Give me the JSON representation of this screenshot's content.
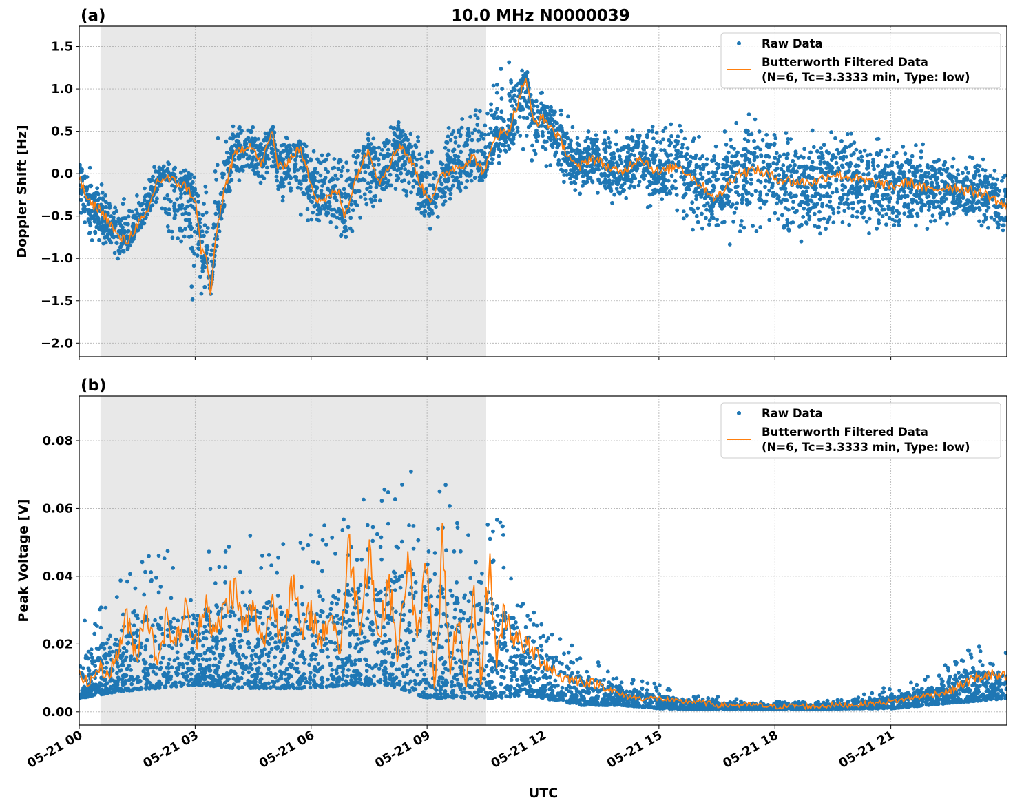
{
  "chart_data": [
    {
      "type": "scatter+line",
      "panel_label": "(a)",
      "title": "10.0 MHz N0000039",
      "xlabel": "",
      "ylabel": "Doppler Shift [Hz]",
      "xlim_hours_utc": [
        0,
        24
      ],
      "ylim": [
        -2.16,
        1.74
      ],
      "yticks": [
        -2.0,
        -1.5,
        -1.0,
        -0.5,
        0.0,
        0.5,
        1.0,
        1.5
      ],
      "ytick_labels": [
        "−2.0",
        "−1.5",
        "−1.0",
        "−0.5",
        "0.0",
        "0.5",
        "1.0",
        "1.5"
      ],
      "grid": true,
      "shaded_span_hours": [
        0.55,
        10.53
      ],
      "shade_color": "#e8e8e8",
      "legend": {
        "placement": "top-right",
        "entries": [
          "Raw Data",
          "Butterworth Filtered Data",
          "(N=6, Tc=3.3333 min, Type: low)"
        ]
      },
      "series": [
        {
          "name": "Butterworth Filtered Data",
          "color": "#ff7f0e",
          "x": [
            0,
            0.25,
            0.5,
            0.75,
            1.0,
            1.25,
            1.5,
            1.75,
            2.0,
            2.25,
            2.5,
            2.75,
            3.0,
            3.15,
            3.3,
            3.4,
            3.55,
            3.75,
            4.0,
            4.2,
            4.45,
            4.7,
            5.0,
            5.15,
            5.4,
            5.7,
            6.0,
            6.15,
            6.4,
            6.7,
            6.85,
            7.0,
            7.2,
            7.5,
            7.75,
            8.0,
            8.3,
            8.65,
            8.9,
            9.1,
            9.35,
            9.6,
            9.9,
            10.2,
            10.5,
            10.75,
            11.1,
            11.4,
            11.55,
            11.75,
            12.0,
            12.3,
            12.55,
            12.9,
            13.25,
            13.6,
            14.0,
            14.5,
            15.0,
            15.5,
            16.0,
            16.5,
            17.0,
            17.5,
            18.0,
            18.5,
            19.0,
            19.5,
            20.0,
            20.5,
            21.0,
            21.5,
            22.0,
            22.5,
            23.0,
            23.5,
            24.0
          ],
          "y": [
            -0.05,
            -0.35,
            -0.4,
            -0.55,
            -0.75,
            -0.8,
            -0.6,
            -0.5,
            -0.1,
            -0.05,
            -0.1,
            -0.15,
            -0.3,
            -0.9,
            -1.0,
            -1.45,
            -0.7,
            -0.2,
            0.2,
            0.3,
            0.35,
            0.1,
            0.5,
            0.05,
            0.15,
            0.3,
            -0.1,
            -0.3,
            -0.3,
            -0.2,
            -0.5,
            -0.3,
            0.0,
            0.3,
            -0.1,
            0.1,
            0.35,
            0.1,
            -0.2,
            -0.3,
            -0.05,
            0.05,
            0.1,
            0.2,
            0.0,
            0.45,
            0.5,
            0.9,
            1.15,
            0.6,
            0.65,
            0.5,
            0.3,
            0.05,
            0.2,
            0.1,
            0.0,
            0.2,
            0.0,
            0.1,
            -0.1,
            -0.3,
            0.0,
            0.05,
            -0.05,
            -0.1,
            -0.1,
            0.0,
            -0.05,
            -0.1,
            -0.15,
            -0.1,
            -0.2,
            -0.15,
            -0.2,
            -0.25,
            -0.4
          ]
        },
        {
          "name": "Raw Data",
          "color": "#1f77b4",
          "range_x": [
            0,
            1,
            2,
            3,
            4,
            5,
            6,
            7,
            8,
            9,
            10,
            11,
            12,
            13,
            14,
            15,
            16,
            17,
            18,
            19,
            20,
            21,
            22,
            23,
            24
          ],
          "range_low": [
            -0.7,
            -1.2,
            -0.4,
            -1.9,
            -0.2,
            -0.3,
            -0.8,
            -0.9,
            -0.4,
            -0.8,
            -0.3,
            0.1,
            0.0,
            -0.3,
            -0.4,
            -0.5,
            -0.8,
            -0.9,
            -0.9,
            -1.0,
            -0.8,
            -0.8,
            -0.8,
            -0.7,
            -0.9
          ],
          "range_high": [
            0.3,
            -0.3,
            0.2,
            0.1,
            0.7,
            0.6,
            0.4,
            0.4,
            0.7,
            0.5,
            0.9,
            1.5,
            1.0,
            0.6,
            0.6,
            0.7,
            0.8,
            0.8,
            0.8,
            0.7,
            0.6,
            0.5,
            0.4,
            0.3,
            0.2
          ]
        }
      ]
    },
    {
      "type": "scatter+line",
      "panel_label": "(b)",
      "xlabel": "UTC",
      "ylabel": "Peak Voltage [V]",
      "xlim_hours_utc": [
        0,
        24
      ],
      "ylim": [
        -0.0039,
        0.0932
      ],
      "yticks": [
        0.0,
        0.02,
        0.04,
        0.06,
        0.08
      ],
      "ytick_labels": [
        "0.00",
        "0.02",
        "0.04",
        "0.06",
        "0.08"
      ],
      "xticks": [
        0,
        3,
        6,
        9,
        12,
        15,
        18,
        21
      ],
      "xtick_labels": [
        "05-21 00",
        "05-21 03",
        "05-21 06",
        "05-21 09",
        "05-21 12",
        "05-21 15",
        "05-21 18",
        "05-21 21"
      ],
      "grid": true,
      "shaded_span_hours": [
        0.55,
        10.53
      ],
      "shade_color": "#e8e8e8",
      "legend": {
        "placement": "top-right",
        "entries": [
          "Raw Data",
          "Butterworth Filtered Data",
          "(N=6, Tc=3.3333 min, Type: low)"
        ]
      },
      "series": [
        {
          "name": "Butterworth Filtered Data",
          "color": "#ff7f0e",
          "x": [
            0,
            0.25,
            0.5,
            0.75,
            1.0,
            1.2,
            1.5,
            1.7,
            2.0,
            2.25,
            2.5,
            2.75,
            3.0,
            3.25,
            3.5,
            3.75,
            4.0,
            4.25,
            4.5,
            4.75,
            5.0,
            5.25,
            5.5,
            5.75,
            6.0,
            6.25,
            6.5,
            6.75,
            7.0,
            7.25,
            7.5,
            7.75,
            8.0,
            8.25,
            8.5,
            8.75,
            9.0,
            9.2,
            9.4,
            9.6,
            9.8,
            10.0,
            10.2,
            10.4,
            10.6,
            10.8,
            11.0,
            11.25,
            11.5,
            12.0,
            12.5,
            13.0,
            13.5,
            14.0,
            14.5,
            15.0,
            15.5,
            16.0,
            16.5,
            17.0,
            17.5,
            18.0,
            18.5,
            19.0,
            19.5,
            20.0,
            20.5,
            21.0,
            21.5,
            22.0,
            22.5,
            23.0,
            23.5,
            24.0
          ],
          "y": [
            0.012,
            0.008,
            0.013,
            0.011,
            0.017,
            0.028,
            0.016,
            0.033,
            0.015,
            0.027,
            0.02,
            0.03,
            0.019,
            0.035,
            0.022,
            0.03,
            0.037,
            0.025,
            0.03,
            0.02,
            0.033,
            0.02,
            0.04,
            0.022,
            0.03,
            0.02,
            0.03,
            0.018,
            0.05,
            0.025,
            0.05,
            0.02,
            0.04,
            0.015,
            0.048,
            0.02,
            0.045,
            0.006,
            0.05,
            0.01,
            0.03,
            0.005,
            0.035,
            0.008,
            0.046,
            0.015,
            0.03,
            0.022,
            0.02,
            0.015,
            0.01,
            0.009,
            0.008,
            0.005,
            0.004,
            0.004,
            0.003,
            0.003,
            0.002,
            0.002,
            0.002,
            0.0015,
            0.0018,
            0.0015,
            0.002,
            0.002,
            0.0025,
            0.003,
            0.004,
            0.005,
            0.006,
            0.009,
            0.011,
            0.01
          ]
        },
        {
          "name": "Raw Data",
          "color": "#1f77b4",
          "range_x": [
            0,
            1,
            2,
            3,
            4,
            5,
            6,
            7,
            8,
            9,
            10,
            10.8,
            11.5,
            12,
            13,
            14,
            15,
            16,
            17,
            18,
            19,
            20,
            21,
            22,
            23,
            24
          ],
          "range_low": [
            0.004,
            0.006,
            0.007,
            0.008,
            0.007,
            0.007,
            0.007,
            0.008,
            0.008,
            0.004,
            0.004,
            0.004,
            0.005,
            0.004,
            0.002,
            0.002,
            0.001,
            0.0008,
            0.0008,
            0.0008,
            0.0008,
            0.001,
            0.001,
            0.002,
            0.003,
            0.004
          ],
          "range_high": [
            0.025,
            0.04,
            0.05,
            0.045,
            0.055,
            0.05,
            0.055,
            0.06,
            0.07,
            0.075,
            0.06,
            0.06,
            0.04,
            0.03,
            0.018,
            0.012,
            0.008,
            0.005,
            0.004,
            0.003,
            0.003,
            0.004,
            0.008,
            0.012,
            0.02,
            0.018
          ]
        }
      ]
    }
  ]
}
